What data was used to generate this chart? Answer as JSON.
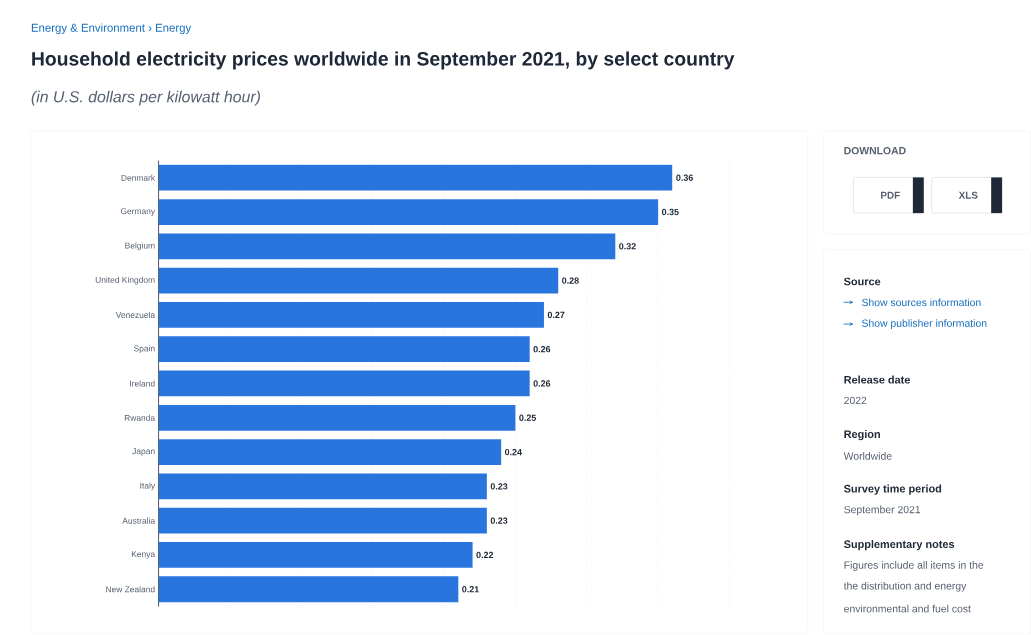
{
  "chart_data": {
    "type": "bar",
    "orientation": "horizontal",
    "title": "Household electricity prices worldwide in September 2021, by select country",
    "subtitle": "(in U.S. dollars per kilowatt hour)",
    "categories": [
      "Denmark",
      "Germany",
      "Belgium",
      "United Kingdom",
      "Venezuela",
      "Spain",
      "Ireland",
      "Rwanda",
      "Japan",
      "Italy",
      "Australia",
      "Kenya",
      "New Zealand"
    ],
    "values": [
      0.36,
      0.35,
      0.32,
      0.28,
      0.27,
      0.26,
      0.26,
      0.25,
      0.24,
      0.23,
      0.23,
      0.22,
      0.21
    ],
    "color": "#2876dd",
    "data_labels": true,
    "xlim": [
      0,
      0.4
    ],
    "xticks": [
      {
        "value": 0.05,
        "label": null
      },
      {
        "value": 0.1,
        "label": null
      },
      {
        "value": 0.15,
        "label": null
      },
      {
        "value": 0.2,
        "label": null
      },
      {
        "value": 0.25,
        "label": null
      },
      {
        "value": 0.3,
        "label": null
      },
      {
        "value": 0.35,
        "label": null
      },
      {
        "value": 0.4,
        "label": null
      }
    ],
    "grid": "x",
    "tick_labels": "y",
    "annotations": [
      "Energy & Environment › Energy",
      "DOWNLOAD",
      "PDF",
      "XLS",
      "Source",
      "Show sources information",
      "Show publisher information",
      "Release date",
      "2022",
      "Region",
      "Worldwide",
      "Survey time period",
      "September 2021",
      "Supplementary notes",
      "Figures include all items in the",
      "the distribution and energy",
      "environmental and fuel cost"
    ]
  }
}
